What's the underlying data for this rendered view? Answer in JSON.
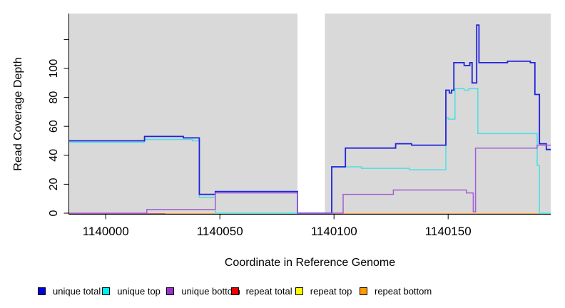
{
  "chart_data": {
    "type": "line",
    "subtype": "step-coverage",
    "title": "",
    "xlabel": "Coordinate in Reference Genome",
    "ylabel": "Read Coverage Depth",
    "xlim": [
      1139984,
      1140195
    ],
    "ylim": [
      0,
      138
    ],
    "grid": false,
    "legend_position": "bottom",
    "x_ticks": [
      1140000,
      1140050,
      1140100,
      1140150
    ],
    "y_ticks": [
      0,
      20,
      40,
      60,
      80,
      100
    ],
    "y_ticks_unlabeled": [
      120
    ],
    "panel_color": "#d9d9d9",
    "gap_region": [
      1140084,
      1140096
    ],
    "series": [
      {
        "name": "unique total",
        "color": "#2222dd",
        "points": [
          [
            1139984,
            50
          ],
          [
            1140017,
            53
          ],
          [
            1140034,
            52
          ],
          [
            1140041,
            13
          ],
          [
            1140048,
            15
          ],
          [
            1140084,
            0
          ],
          [
            1140099,
            32
          ],
          [
            1140105,
            45
          ],
          [
            1140127,
            48
          ],
          [
            1140134,
            47
          ],
          [
            1140149,
            85
          ],
          [
            1140150.5,
            83
          ],
          [
            1140151.5,
            85
          ],
          [
            1140152.5,
            104
          ],
          [
            1140157,
            102
          ],
          [
            1140159.5,
            104
          ],
          [
            1140160.5,
            90
          ],
          [
            1140162.5,
            130
          ],
          [
            1140163.5,
            104
          ],
          [
            1140176,
            105
          ],
          [
            1140186,
            104
          ],
          [
            1140188,
            82
          ],
          [
            1140190,
            48
          ],
          [
            1140193,
            44
          ],
          [
            1140195,
            44
          ]
        ]
      },
      {
        "name": "unique top",
        "color": "#4fdde4",
        "points": [
          [
            1139984,
            49
          ],
          [
            1140017,
            51
          ],
          [
            1140038,
            50
          ],
          [
            1140041,
            11
          ],
          [
            1140048,
            0
          ],
          [
            1140099,
            32
          ],
          [
            1140112,
            31
          ],
          [
            1140133,
            30
          ],
          [
            1140149,
            66
          ],
          [
            1140150,
            65
          ],
          [
            1140153,
            86
          ],
          [
            1140157,
            85
          ],
          [
            1140159,
            86
          ],
          [
            1140163,
            55
          ],
          [
            1140189,
            33
          ],
          [
            1140190,
            0
          ],
          [
            1140195,
            0
          ]
        ]
      },
      {
        "name": "unique bottom",
        "color": "#a05fd6",
        "points": [
          [
            1139984,
            0
          ],
          [
            1140018,
            2.5
          ],
          [
            1140048,
            14
          ],
          [
            1140084,
            0
          ],
          [
            1140104,
            13
          ],
          [
            1140126,
            16
          ],
          [
            1140158,
            14
          ],
          [
            1140161,
            1
          ],
          [
            1140162,
            45
          ],
          [
            1140189,
            47
          ],
          [
            1140195,
            47
          ]
        ]
      },
      {
        "name": "repeat total",
        "color": "#cc2233",
        "points": [
          [
            1139984,
            0
          ],
          [
            1140195,
            0
          ]
        ]
      },
      {
        "name": "repeat top",
        "color": "#eeee00",
        "points": [
          [
            1139984,
            0
          ],
          [
            1140195,
            0
          ]
        ]
      },
      {
        "name": "repeat bottom",
        "color": "#ff8c00",
        "points": [
          [
            1139984,
            0
          ],
          [
            1140195,
            0
          ]
        ]
      }
    ],
    "baseline_render_segments": [
      {
        "color": "#cc2233",
        "from": 1139984,
        "to": 1140026
      },
      {
        "color": "#cc2233",
        "from": 1140084,
        "to": 1140099
      },
      {
        "color": "#ff8c00",
        "from": 1140026,
        "to": 1140048
      },
      {
        "color": "#ff8c00",
        "from": 1140099,
        "to": 1140190
      },
      {
        "color": "#77c877",
        "from": 1140048,
        "to": 1140084
      },
      {
        "color": "#77c877",
        "from": 1140190,
        "to": 1140195
      }
    ]
  },
  "legend": {
    "entries": [
      {
        "label": "unique total",
        "color": "#0000dd"
      },
      {
        "label": "unique top",
        "color": "#00eeee"
      },
      {
        "label": "unique bottom",
        "color": "#9933cc"
      },
      {
        "label": "repeat total",
        "color": "#ee0000"
      },
      {
        "label": "repeat top",
        "color": "#ffff00"
      },
      {
        "label": "repeat bottom",
        "color": "#ff9900"
      }
    ]
  }
}
